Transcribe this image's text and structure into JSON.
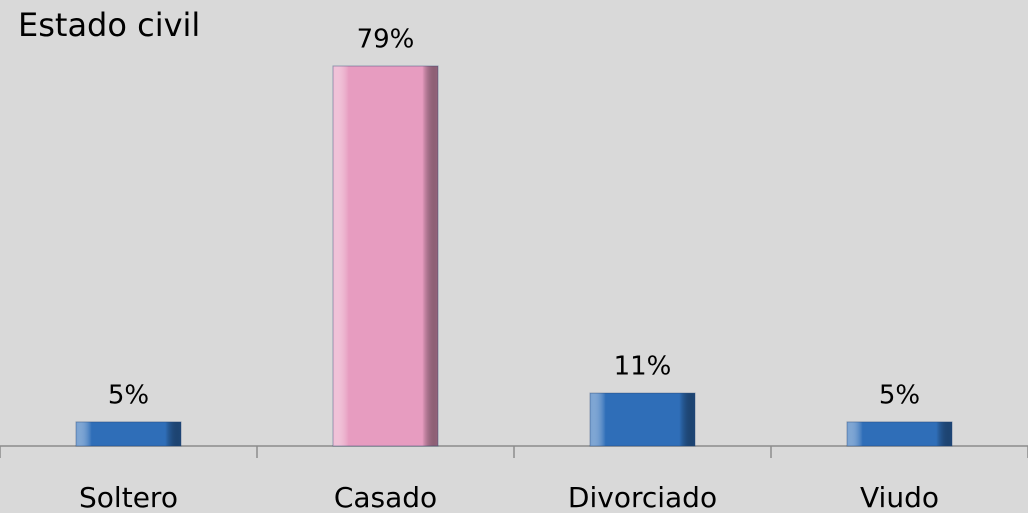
{
  "chart_data": {
    "type": "bar",
    "title": "Estado civil",
    "categories": [
      "Soltero",
      "Casado",
      "Divorciado",
      "Viudo"
    ],
    "values": [
      5,
      79,
      11,
      5
    ],
    "value_labels": [
      "5%",
      "79%",
      "11%",
      "5%"
    ],
    "colors": [
      "#2f6eb8",
      "#e79cc0",
      "#2f6eb8",
      "#2f6eb8"
    ]
  }
}
